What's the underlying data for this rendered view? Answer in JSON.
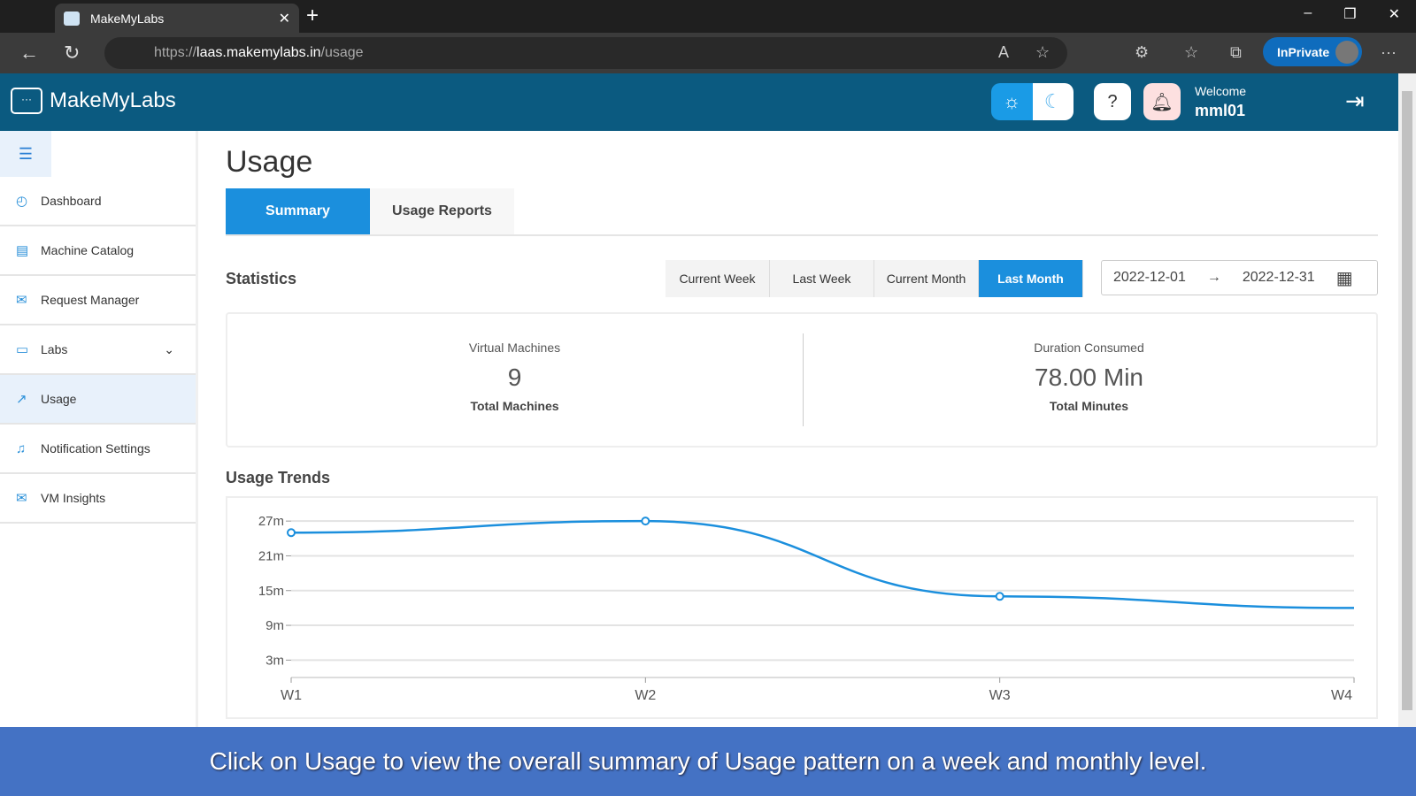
{
  "browser": {
    "tab_title": "MakeMyLabs",
    "url_prefix": "https://",
    "url_host": "laas.makemylabs.in",
    "url_path": "/usage",
    "inprivate": "InPrivate"
  },
  "header": {
    "brand": "MakeMyLabs",
    "welcome": "Welcome",
    "username": "mml01"
  },
  "sidebar": {
    "items": [
      {
        "label": "Dashboard",
        "icon": "dashboard-icon"
      },
      {
        "label": "Machine Catalog",
        "icon": "catalog-icon"
      },
      {
        "label": "Request Manager",
        "icon": "mail-icon"
      },
      {
        "label": "Labs",
        "icon": "monitor-icon"
      },
      {
        "label": "Usage",
        "icon": "trend-icon"
      },
      {
        "label": "Notification Settings",
        "icon": "bell-icon"
      },
      {
        "label": "VM Insights",
        "icon": "mail-icon"
      }
    ]
  },
  "page": {
    "title": "Usage",
    "tabs": [
      "Summary",
      "Usage Reports"
    ],
    "statistics": "Statistics",
    "periods": [
      "Current Week",
      "Last Week",
      "Current Month",
      "Last Month"
    ],
    "date_from": "2022-12-01",
    "date_to": "2022-12-31",
    "vm": {
      "label": "Virtual Machines",
      "value": "9",
      "sub": "Total Machines"
    },
    "duration": {
      "label": "Duration Consumed",
      "value": "78.00 Min",
      "sub": "Total Minutes"
    },
    "trends_title": "Usage Trends"
  },
  "chart_data": {
    "type": "line",
    "title": "Usage Trends",
    "categories": [
      "W1",
      "W2",
      "W3",
      "W4"
    ],
    "values": [
      25,
      27,
      14,
      12
    ],
    "unit": "minutes",
    "yticks": [
      "3m",
      "9m",
      "15m",
      "21m",
      "27m"
    ],
    "ytick_values": [
      3,
      9,
      15,
      21,
      27
    ],
    "ylim": [
      0,
      28
    ],
    "grid": true,
    "color": "#1b8fdd"
  },
  "caption": "Click on Usage to view the overall summary of Usage pattern on a week and monthly level."
}
